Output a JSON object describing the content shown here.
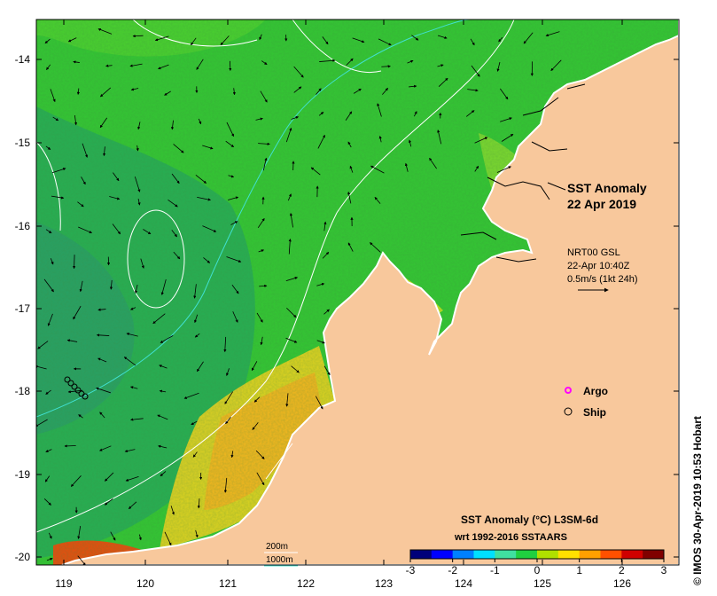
{
  "title": {
    "line1": "SST Anomaly",
    "line2": "22 Apr 2019"
  },
  "current_info": {
    "source": "NRT00 GSL",
    "time": "22-Apr 10:40Z",
    "scale": "0.5m/s (1kt 24h)"
  },
  "legend": {
    "argo": "Argo",
    "ship": "Ship"
  },
  "colorbar": {
    "title_line1": "SST Anomaly (°C) L3SM-6d",
    "title_line2": "wrt 1992-2016 SSTAARS",
    "ticks": [
      "-3",
      "-2",
      "-1",
      "0",
      "1",
      "2",
      "3"
    ],
    "min": -3,
    "max": 3,
    "colors": [
      "#00007a",
      "#0000ff",
      "#0080ff",
      "#00e0ff",
      "#40e0a0",
      "#20d040",
      "#b0e000",
      "#ffe000",
      "#ffa000",
      "#ff5000",
      "#d00000",
      "#800000"
    ]
  },
  "isobaths": {
    "label_200": "200m",
    "label_1000": "1000m",
    "color_200": "#ffffff",
    "color_1000": "#40e0d0"
  },
  "axes": {
    "x_ticks": [
      "119",
      "120",
      "121",
      "122",
      "123",
      "124",
      "125",
      "126"
    ],
    "y_ticks": [
      "-14",
      "-15",
      "-16",
      "-17",
      "-18",
      "-19",
      "-20"
    ]
  },
  "colors": {
    "land": "#f8c89c",
    "sea": "#34c434",
    "argo": "#ff00ff",
    "coast": "#ffffff"
  },
  "credit": "© IMOS 30-Apr-2019 10:53 Hobart"
}
